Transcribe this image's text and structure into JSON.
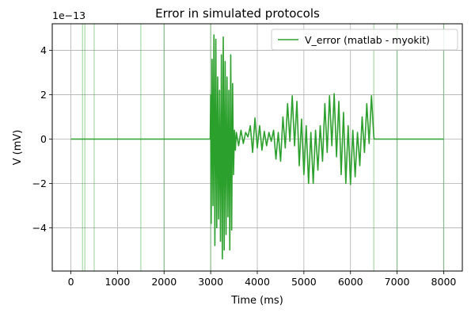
{
  "chart_data": {
    "type": "line",
    "title": "Error in simulated protocols",
    "xlabel": "Time (ms)",
    "ylabel": "V (mV)",
    "y_offset_label": "1e−13",
    "y_scale_exponent": -13,
    "xlim": [
      -400,
      8400
    ],
    "ylim": [
      -5.95,
      5.2
    ],
    "x_ticks": [
      0,
      1000,
      2000,
      3000,
      4000,
      5000,
      6000,
      7000,
      8000
    ],
    "x_tick_labels": [
      "0",
      "1000",
      "2000",
      "3000",
      "4000",
      "5000",
      "6000",
      "7000",
      "8000"
    ],
    "y_ticks": [
      -4,
      -2,
      0,
      2,
      4
    ],
    "y_tick_labels": [
      "−4",
      "−2",
      "0",
      "2",
      "4"
    ],
    "grid": true,
    "legend_position": "top-right",
    "series_color": "#2ca02c",
    "protocol_event_times": [
      250,
      300,
      500,
      1500,
      2000,
      3000,
      6500,
      7000,
      8000
    ],
    "series": [
      {
        "name": "V_error (matlab - myokit)",
        "color": "#2ca02c",
        "x": [
          0,
          2990,
          3000,
          3010,
          3030,
          3050,
          3070,
          3090,
          3110,
          3130,
          3150,
          3170,
          3190,
          3210,
          3230,
          3250,
          3270,
          3290,
          3310,
          3330,
          3350,
          3370,
          3390,
          3410,
          3430,
          3450,
          3470,
          3490,
          3510,
          3530,
          3550,
          3600,
          3650,
          3700,
          3750,
          3800,
          3850,
          3900,
          3950,
          4000,
          4050,
          4100,
          4150,
          4200,
          4250,
          4300,
          4350,
          4400,
          4450,
          4500,
          4550,
          4600,
          4650,
          4700,
          4750,
          4800,
          4850,
          4900,
          4950,
          5000,
          5050,
          5100,
          5150,
          5200,
          5250,
          5300,
          5350,
          5400,
          5450,
          5500,
          5550,
          5600,
          5650,
          5700,
          5750,
          5800,
          5850,
          5900,
          5950,
          6000,
          6050,
          6100,
          6150,
          6200,
          6250,
          6300,
          6350,
          6400,
          6450,
          6500,
          6510,
          8000
        ],
        "y": [
          0,
          0,
          2.0,
          -3.8,
          3.6,
          -3.0,
          4.7,
          -4.8,
          4.5,
          -4.0,
          2.8,
          -3.6,
          2.2,
          -4.6,
          3.8,
          -5.4,
          4.6,
          -5.0,
          3.5,
          -4.3,
          2.8,
          -3.5,
          2.2,
          -5.0,
          3.8,
          -4.1,
          2.5,
          -1.6,
          0.4,
          -0.5,
          0.3,
          -0.3,
          0.4,
          -0.2,
          0.3,
          0.1,
          0.6,
          -0.6,
          0.95,
          -0.4,
          0.6,
          -0.5,
          0.35,
          -0.3,
          0.3,
          -0.1,
          0.4,
          -0.9,
          0.3,
          -1.0,
          1.0,
          -0.4,
          1.6,
          -0.1,
          1.95,
          -0.3,
          1.7,
          -1.2,
          0.9,
          -1.6,
          0.6,
          -2.0,
          0.3,
          -2.0,
          0.4,
          -1.4,
          0.6,
          -1.0,
          1.6,
          -0.6,
          1.95,
          -0.3,
          2.05,
          -0.8,
          1.7,
          -1.6,
          1.2,
          -2.0,
          0.6,
          -2.05,
          0.4,
          -1.7,
          0.3,
          -1.2,
          1.0,
          -0.6,
          1.6,
          -0.2,
          1.95,
          0.1,
          0,
          0
        ]
      }
    ]
  }
}
